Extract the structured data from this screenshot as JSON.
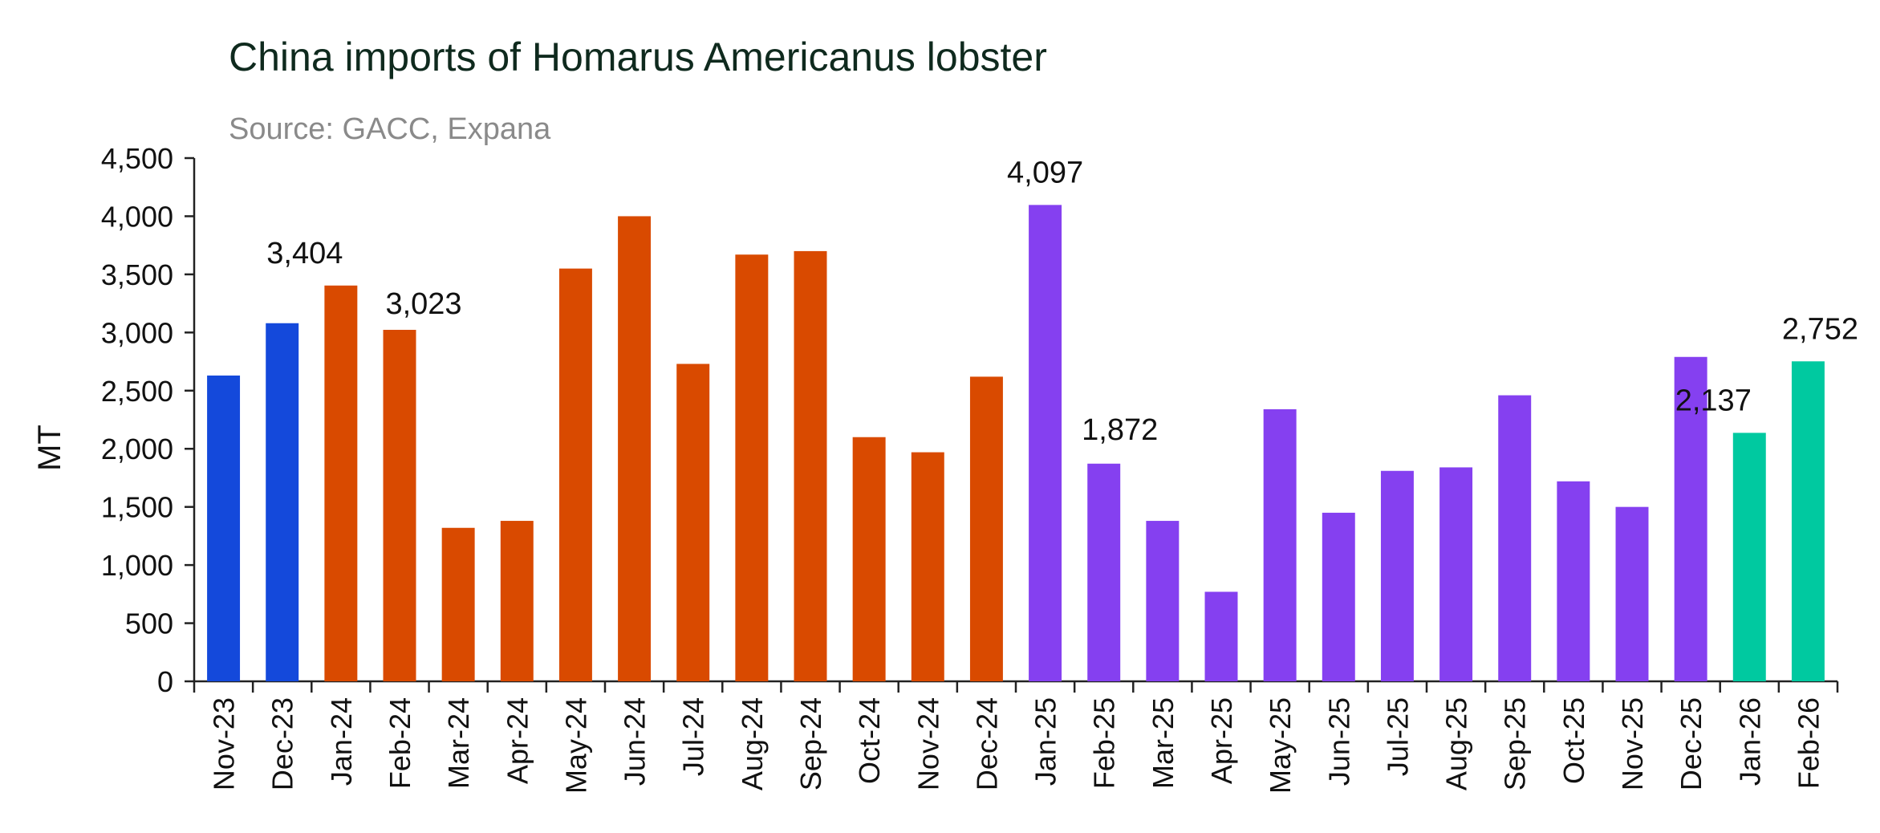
{
  "chart_data": {
    "type": "bar",
    "title": "China imports of Homarus Americanus lobster",
    "subtitle": "Source: GACC, Expana",
    "xlabel": "",
    "ylabel": "MT",
    "ylim": [
      0,
      4500
    ],
    "yticks": [
      0,
      500,
      1000,
      1500,
      2000,
      2500,
      3000,
      3500,
      4000,
      4500
    ],
    "ytick_labels": [
      "0",
      "500",
      "1,000",
      "1,500",
      "2,000",
      "2,500",
      "3,000",
      "3,500",
      "4,000",
      "4,500"
    ],
    "grid": false,
    "categories": [
      "Nov-23",
      "Dec-23",
      "Jan-24",
      "Feb-24",
      "Mar-24",
      "Apr-24",
      "May-24",
      "Jun-24",
      "Jul-24",
      "Aug-24",
      "Sep-24",
      "Oct-24",
      "Nov-24",
      "Dec-24",
      "Jan-25",
      "Feb-25",
      "Mar-25",
      "Apr-25",
      "May-25",
      "Jun-25",
      "Jul-25",
      "Aug-25",
      "Sep-25",
      "Oct-25",
      "Nov-25",
      "Dec-25",
      "Jan-26",
      "Feb-26"
    ],
    "values": [
      2630,
      3080,
      3404,
      3023,
      1320,
      1380,
      3550,
      4000,
      2730,
      3670,
      3700,
      2100,
      1970,
      2620,
      4097,
      1872,
      1380,
      770,
      2340,
      1450,
      1810,
      1840,
      2460,
      1720,
      1500,
      2790,
      2137,
      2752
    ],
    "bar_colors": [
      "#1449db",
      "#1449db",
      "#d94a00",
      "#d94a00",
      "#d94a00",
      "#d94a00",
      "#d94a00",
      "#d94a00",
      "#d94a00",
      "#d94a00",
      "#d94a00",
      "#d94a00",
      "#d94a00",
      "#d94a00",
      "#8540f0",
      "#8540f0",
      "#8540f0",
      "#8540f0",
      "#8540f0",
      "#8540f0",
      "#8540f0",
      "#8540f0",
      "#8540f0",
      "#8540f0",
      "#8540f0",
      "#8540f0",
      "#00c9a0",
      "#00c9a0"
    ],
    "data_labels": [
      {
        "index": 2,
        "text": "3,404"
      },
      {
        "index": 3,
        "text": "3,023"
      },
      {
        "index": 14,
        "text": "4,097"
      },
      {
        "index": 15,
        "text": "1,872"
      },
      {
        "index": 26,
        "text": "2,137"
      },
      {
        "index": 27,
        "text": "2,752"
      }
    ]
  }
}
